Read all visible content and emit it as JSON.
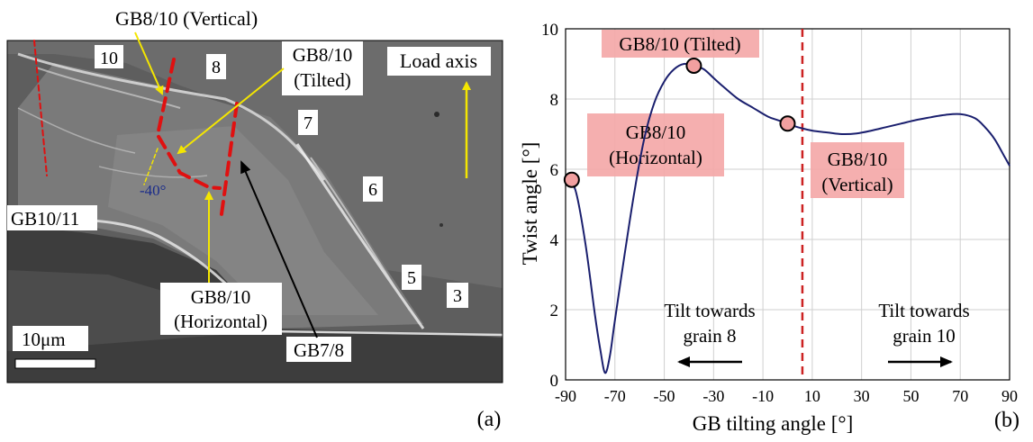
{
  "panel_a": {
    "label": "(a)",
    "annotations": {
      "gb_vertical": "GB8/10 (Vertical)",
      "gb_tilted_line1": "GB8/10",
      "gb_tilted_line2": "(Tilted)",
      "gb_horizontal_line1": "GB8/10",
      "gb_horizontal_line2": "(Horizontal)",
      "load_axis": "Load axis",
      "gb10_11": "GB10/11",
      "gb7_8": "GB7/8",
      "angle": "-40°",
      "scale_bar": "10μm"
    },
    "grains": [
      "10",
      "8",
      "7",
      "6",
      "5",
      "3"
    ]
  },
  "panel_b": {
    "label": "(b)",
    "callouts": {
      "tilted": "GB8/10 (Tilted)",
      "horizontal_line1": "GB8/10",
      "horizontal_line2": "(Horizontal)",
      "vertical_line1": "GB8/10",
      "vertical_line2": "(Vertical)"
    },
    "arrows": {
      "left_line1": "Tilt towards",
      "left_line2": "grain 8",
      "right_line1": "Tilt towards",
      "right_line2": "grain 10"
    }
  },
  "chart_data": {
    "type": "line",
    "xlabel": "GB tilting angle [°]",
    "ylabel": "Twist angle [°]",
    "xlim": [
      -90,
      90
    ],
    "ylim": [
      0,
      10
    ],
    "xticks": [
      -90,
      -70,
      -50,
      -30,
      -10,
      10,
      30,
      50,
      70,
      90
    ],
    "yticks": [
      0,
      2,
      4,
      6,
      8,
      10
    ],
    "grid": true,
    "series": [
      {
        "color": "#1a1f6e",
        "x": [
          -90,
          -86,
          -82,
          -78,
          -76,
          -74,
          -72,
          -70,
          -66,
          -62,
          -58,
          -54,
          -50,
          -46,
          -42,
          -38,
          -34,
          -30,
          -26,
          -20,
          -14,
          -8,
          -4,
          0,
          4,
          10,
          16,
          22,
          28,
          34,
          40,
          46,
          52,
          58,
          64,
          70,
          76,
          80,
          84,
          88,
          90
        ],
        "y": [
          5.8,
          5.4,
          3.9,
          1.8,
          0.9,
          0.2,
          0.7,
          1.7,
          3.6,
          5.4,
          6.9,
          7.9,
          8.5,
          8.85,
          9.0,
          8.95,
          8.85,
          8.6,
          8.35,
          8.0,
          7.75,
          7.5,
          7.4,
          7.3,
          7.2,
          7.1,
          7.05,
          7.0,
          7.02,
          7.1,
          7.2,
          7.3,
          7.4,
          7.48,
          7.55,
          7.57,
          7.45,
          7.2,
          6.85,
          6.35,
          6.1
        ]
      }
    ],
    "markers": [
      {
        "x": -87.5,
        "y": 5.7
      },
      {
        "x": -38,
        "y": 8.95
      },
      {
        "x": 0,
        "y": 7.3
      }
    ],
    "vline": {
      "x": 6,
      "color": "#cc2222"
    }
  }
}
